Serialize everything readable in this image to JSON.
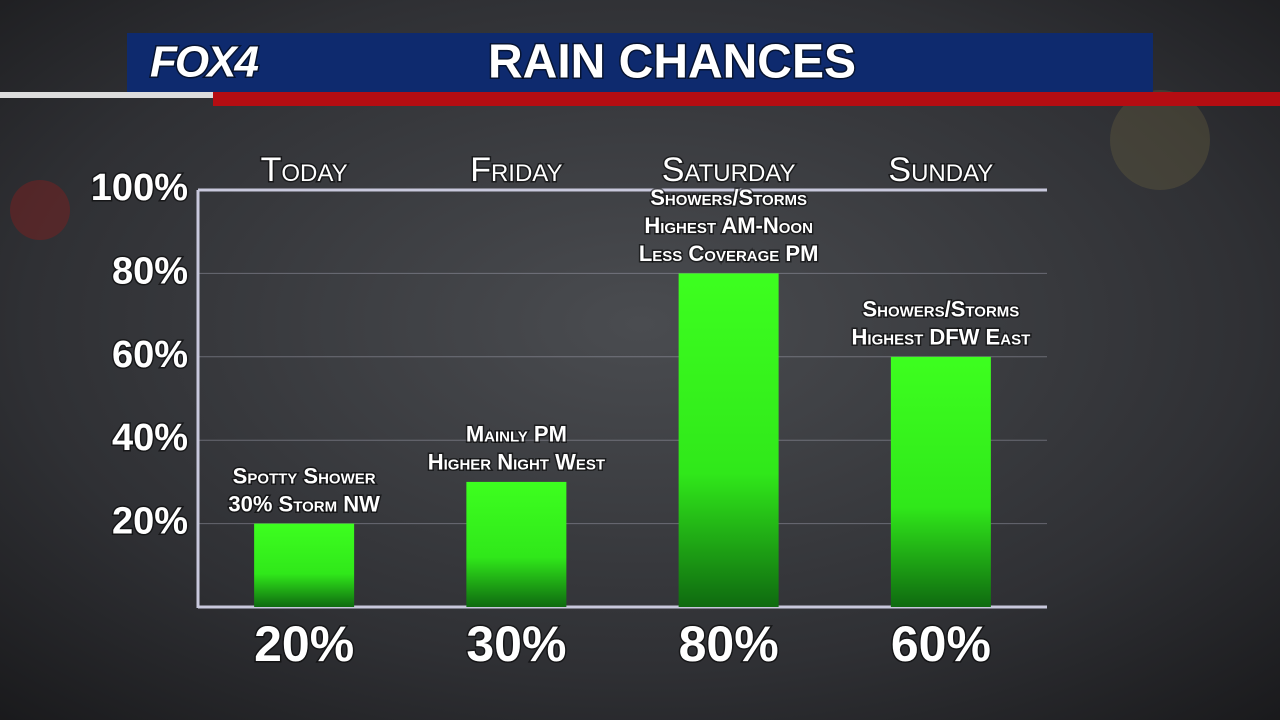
{
  "chart_data": {
    "type": "bar",
    "logo": "FOX4",
    "title": "RAIN CHANCES",
    "categories": [
      "Today",
      "Friday",
      "Saturday",
      "Sunday"
    ],
    "values": [
      20,
      30,
      80,
      60
    ],
    "value_labels": [
      "20%",
      "30%",
      "80%",
      "60%"
    ],
    "annotations": [
      [
        "Spotty Shower",
        "30% Storm NW"
      ],
      [
        "Mainly PM",
        "Higher Night West"
      ],
      [
        "Showers/Storms",
        "Highest AM-Noon",
        "Less Coverage PM"
      ],
      [
        "Showers/Storms",
        "Highest DFW East"
      ]
    ],
    "color": "#3dff1f",
    "ylim": [
      0,
      100
    ],
    "yticks": [
      {
        "value": 20,
        "label": "20%"
      },
      {
        "value": 40,
        "label": "40%"
      },
      {
        "value": 60,
        "label": "60%"
      },
      {
        "value": 80,
        "label": "80%"
      },
      {
        "value": 100,
        "label": "100%"
      }
    ],
    "grid": true
  }
}
